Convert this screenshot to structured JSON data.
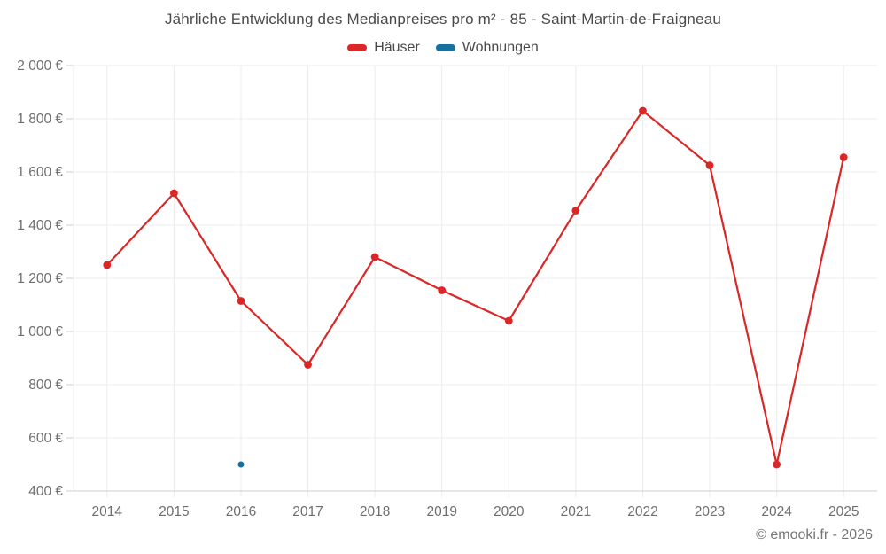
{
  "page": {
    "background": "#ffffff"
  },
  "chart": {
    "footer": "© emooki.fr - 2026"
  },
  "colors": {
    "haeuser": "#db2727",
    "wohnungen": "#17719f",
    "grid": "#ececec",
    "axis": "#cfcfcf",
    "title_text": "#4a4a4a",
    "axis_text": "#6e6e6e",
    "footer_text": "#757575"
  },
  "chart_data": {
    "type": "line",
    "title": "Jährliche Entwicklung des Medianpreises pro m² - 85 - Saint-Martin-de-Fraigneau",
    "xlabel": "",
    "ylabel": "",
    "categories": [
      "2014",
      "2015",
      "2016",
      "2017",
      "2018",
      "2019",
      "2020",
      "2021",
      "2022",
      "2023",
      "2024",
      "2025"
    ],
    "series": [
      {
        "name": "Häuser",
        "type": "line",
        "color": "#db2727",
        "values": [
          1250,
          1520,
          1115,
          875,
          1280,
          1155,
          1040,
          1455,
          1830,
          1625,
          500,
          1655
        ]
      },
      {
        "name": "Wohnungen",
        "type": "scatter",
        "color": "#17719f",
        "points": [
          {
            "category": "2016",
            "value": 500
          }
        ]
      }
    ],
    "ylim": [
      400,
      2000
    ],
    "ytick_step": 200,
    "ytick_labels": [
      "400 €",
      "600 €",
      "800 €",
      "1 000 €",
      "1 200 €",
      "1 400 €",
      "1 600 €",
      "1 800 €",
      "2 000 €"
    ],
    "grid": true,
    "legend_position": "top"
  }
}
